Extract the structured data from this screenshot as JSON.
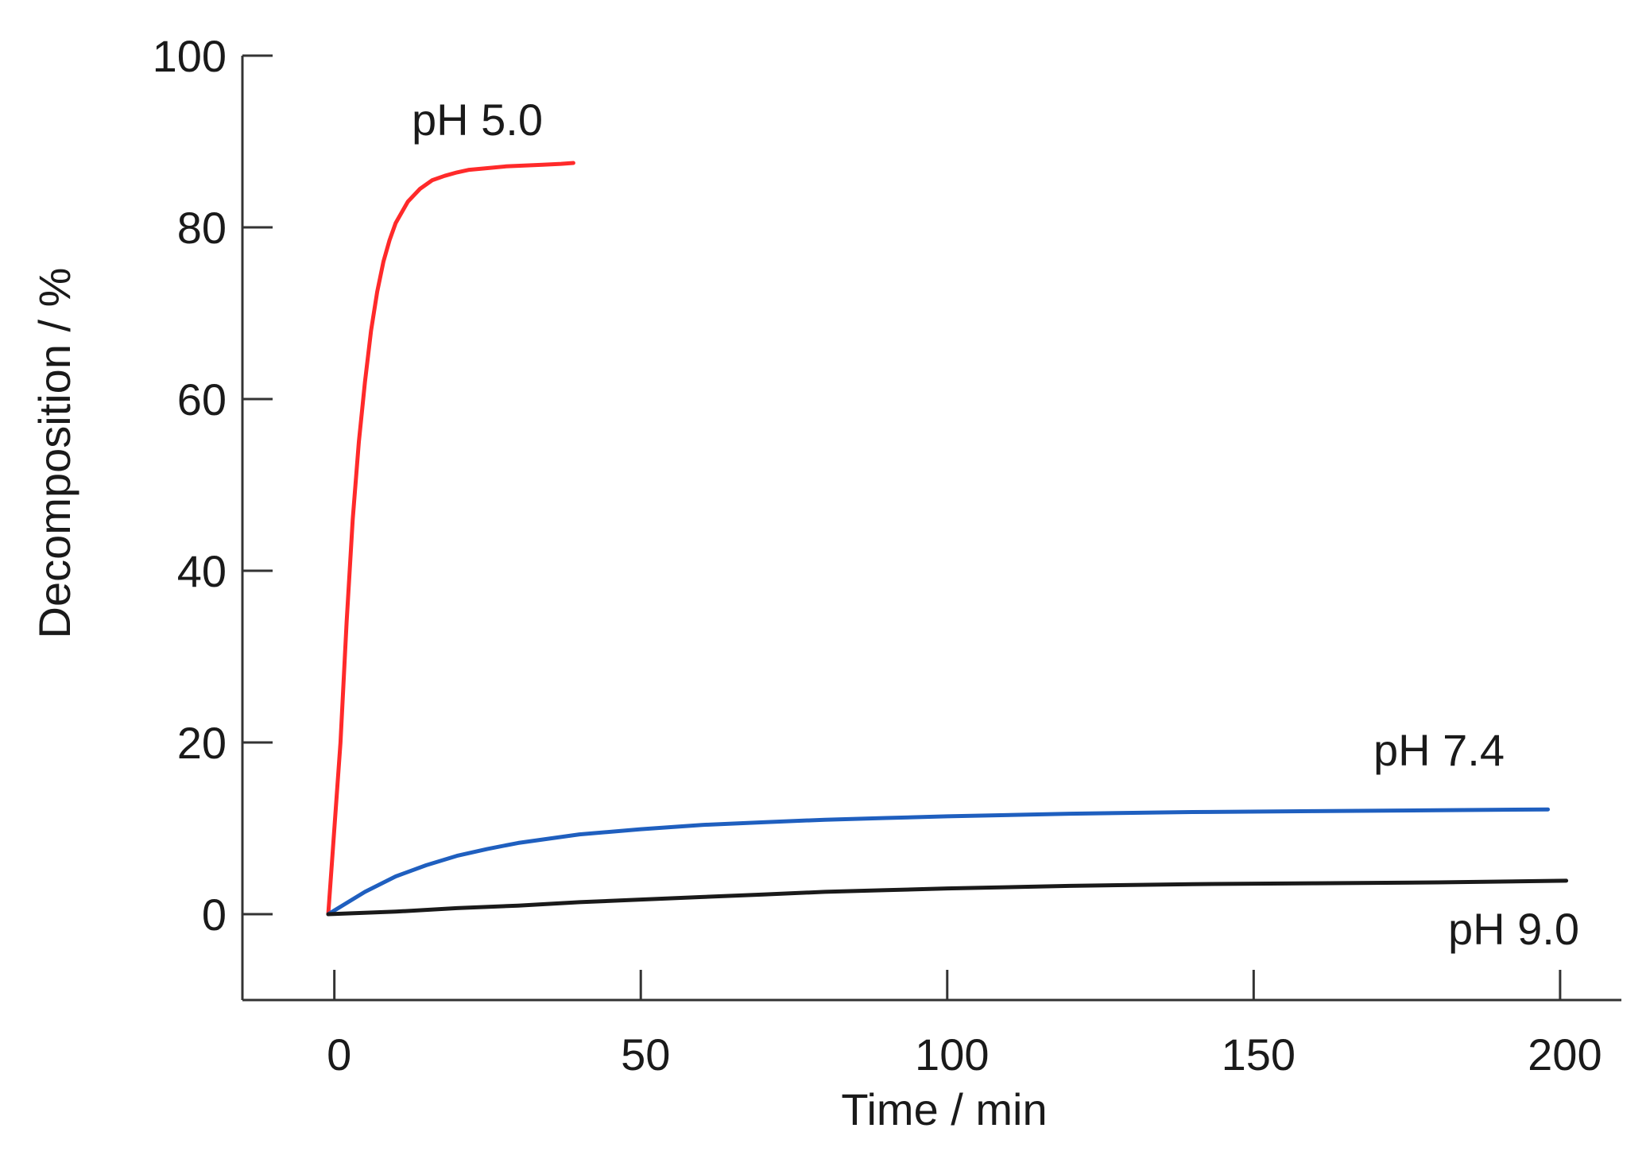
{
  "chart_data": {
    "type": "line",
    "title": "",
    "xlabel": "Time / min",
    "ylabel": "Decomposition / %",
    "xlim": [
      -15,
      210
    ],
    "ylim": [
      -10,
      100
    ],
    "xticks": [
      0,
      50,
      100,
      150,
      200
    ],
    "yticks": [
      0,
      20,
      40,
      60,
      80,
      100
    ],
    "grid": false,
    "legend": "none",
    "series": [
      {
        "name": "pH 5.0",
        "color": "#ff2a2a",
        "x": [
          -1,
          1,
          2,
          3,
          4,
          5,
          6,
          7,
          8,
          9,
          10,
          12,
          14,
          16,
          18,
          20,
          22,
          25,
          28,
          31,
          34,
          37,
          39
        ],
        "y": [
          0,
          20,
          34,
          46,
          55,
          62,
          68,
          72.5,
          76,
          78.5,
          80.5,
          83,
          84.5,
          85.5,
          86,
          86.4,
          86.7,
          86.9,
          87.1,
          87.2,
          87.3,
          87.4,
          87.5
        ]
      },
      {
        "name": "pH 7.4",
        "color": "#1f5fbf",
        "x": [
          -1,
          5,
          10,
          15,
          20,
          25,
          30,
          40,
          50,
          60,
          70,
          80,
          90,
          100,
          120,
          140,
          160,
          180,
          198
        ],
        "y": [
          0,
          2.6,
          4.4,
          5.7,
          6.8,
          7.6,
          8.3,
          9.3,
          9.9,
          10.4,
          10.7,
          11.0,
          11.2,
          11.4,
          11.7,
          11.9,
          12.0,
          12.1,
          12.2
        ]
      },
      {
        "name": "pH 9.0",
        "color": "#1a1a1a",
        "x": [
          -1,
          10,
          20,
          30,
          40,
          50,
          60,
          70,
          80,
          90,
          100,
          120,
          140,
          160,
          180,
          201
        ],
        "y": [
          0,
          0.3,
          0.7,
          1.0,
          1.4,
          1.7,
          2.0,
          2.3,
          2.6,
          2.8,
          3.0,
          3.3,
          3.5,
          3.6,
          3.7,
          3.9
        ]
      }
    ]
  }
}
